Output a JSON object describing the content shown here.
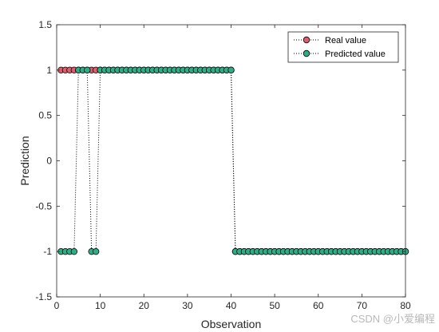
{
  "chart_data": {
    "type": "line",
    "xlabel": "Observation",
    "ylabel": "Prediction",
    "xlim": [
      0,
      80
    ],
    "ylim": [
      -1.5,
      1.5
    ],
    "xticks": [
      "0",
      "10",
      "20",
      "30",
      "40",
      "50",
      "60",
      "70",
      "80"
    ],
    "yticks": [
      "-1.5",
      "-1",
      "-0.5",
      "0",
      "0.5",
      "1",
      "1.5"
    ],
    "grid": false,
    "legend_position": "top-right",
    "x": [
      1,
      2,
      3,
      4,
      5,
      6,
      7,
      8,
      9,
      10,
      11,
      12,
      13,
      14,
      15,
      16,
      17,
      18,
      19,
      20,
      21,
      22,
      23,
      24,
      25,
      26,
      27,
      28,
      29,
      30,
      31,
      32,
      33,
      34,
      35,
      36,
      37,
      38,
      39,
      40,
      41,
      42,
      43,
      44,
      45,
      46,
      47,
      48,
      49,
      50,
      51,
      52,
      53,
      54,
      55,
      56,
      57,
      58,
      59,
      60,
      61,
      62,
      63,
      64,
      65,
      66,
      67,
      68,
      69,
      70,
      71,
      72,
      73,
      74,
      75,
      76,
      77,
      78,
      79,
      80
    ],
    "series": [
      {
        "name": "Real value",
        "color": "#e05c6a",
        "values": [
          1,
          1,
          1,
          1,
          1,
          1,
          1,
          1,
          1,
          1,
          1,
          1,
          1,
          1,
          1,
          1,
          1,
          1,
          1,
          1,
          1,
          1,
          1,
          1,
          1,
          1,
          1,
          1,
          1,
          1,
          1,
          1,
          1,
          1,
          1,
          1,
          1,
          1,
          1,
          1,
          -1,
          -1,
          -1,
          -1,
          -1,
          -1,
          -1,
          -1,
          -1,
          -1,
          -1,
          -1,
          -1,
          -1,
          -1,
          -1,
          -1,
          -1,
          -1,
          -1,
          -1,
          -1,
          -1,
          -1,
          -1,
          -1,
          -1,
          -1,
          -1,
          -1,
          -1,
          -1,
          -1,
          -1,
          -1,
          -1,
          -1,
          -1,
          -1,
          -1
        ]
      },
      {
        "name": "Predicted value",
        "color": "#2fae86",
        "values": [
          -1,
          -1,
          -1,
          -1,
          1,
          1,
          1,
          -1,
          -1,
          1,
          1,
          1,
          1,
          1,
          1,
          1,
          1,
          1,
          1,
          1,
          1,
          1,
          1,
          1,
          1,
          1,
          1,
          1,
          1,
          1,
          1,
          1,
          1,
          1,
          1,
          1,
          1,
          1,
          1,
          1,
          -1,
          -1,
          -1,
          -1,
          -1,
          -1,
          -1,
          -1,
          -1,
          -1,
          -1,
          -1,
          -1,
          -1,
          -1,
          -1,
          -1,
          -1,
          -1,
          -1,
          -1,
          -1,
          -1,
          -1,
          -1,
          -1,
          -1,
          -1,
          -1,
          -1,
          -1,
          -1,
          -1,
          -1,
          -1,
          -1,
          -1,
          -1,
          -1,
          -1
        ]
      }
    ]
  },
  "watermark": "CSDN @小爱编程"
}
